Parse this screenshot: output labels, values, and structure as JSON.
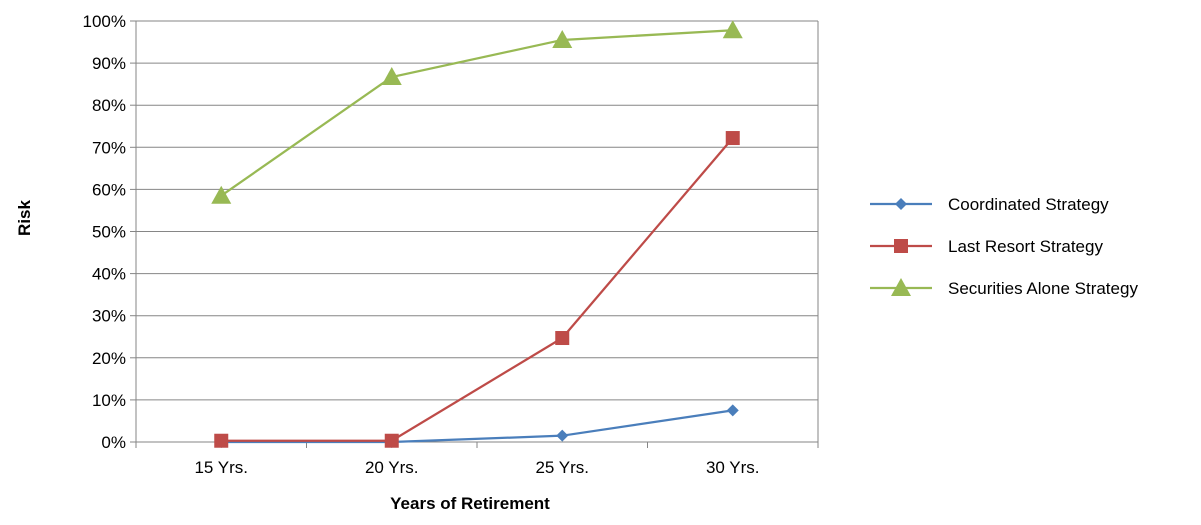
{
  "chart_data": {
    "type": "line",
    "title": "",
    "xlabel": "Years of Retirement",
    "ylabel": "Risk",
    "categories": [
      "15 Yrs.",
      "20 Yrs.",
      "25 Yrs.",
      "30 Yrs."
    ],
    "ylim": [
      0,
      100
    ],
    "yticks": [
      0,
      10,
      20,
      30,
      40,
      50,
      60,
      70,
      80,
      90,
      100
    ],
    "ytick_labels": [
      "0%",
      "10%",
      "20%",
      "30%",
      "40%",
      "50%",
      "60%",
      "70%",
      "80%",
      "90%",
      "100%"
    ],
    "grid": true,
    "legend_position": "right",
    "series": [
      {
        "name": "Coordinated Strategy",
        "color": "#4a7ebb",
        "marker": "diamond",
        "values": [
          0,
          0,
          1.5,
          7.5
        ]
      },
      {
        "name": "Last Resort Strategy",
        "color": "#be4b48",
        "marker": "square",
        "values": [
          0.3,
          0.3,
          24.7,
          72.2
        ]
      },
      {
        "name": "Securities Alone Strategy",
        "color": "#98b954",
        "marker": "triangle",
        "values": [
          58.5,
          86.7,
          95.5,
          97.8
        ]
      }
    ]
  }
}
